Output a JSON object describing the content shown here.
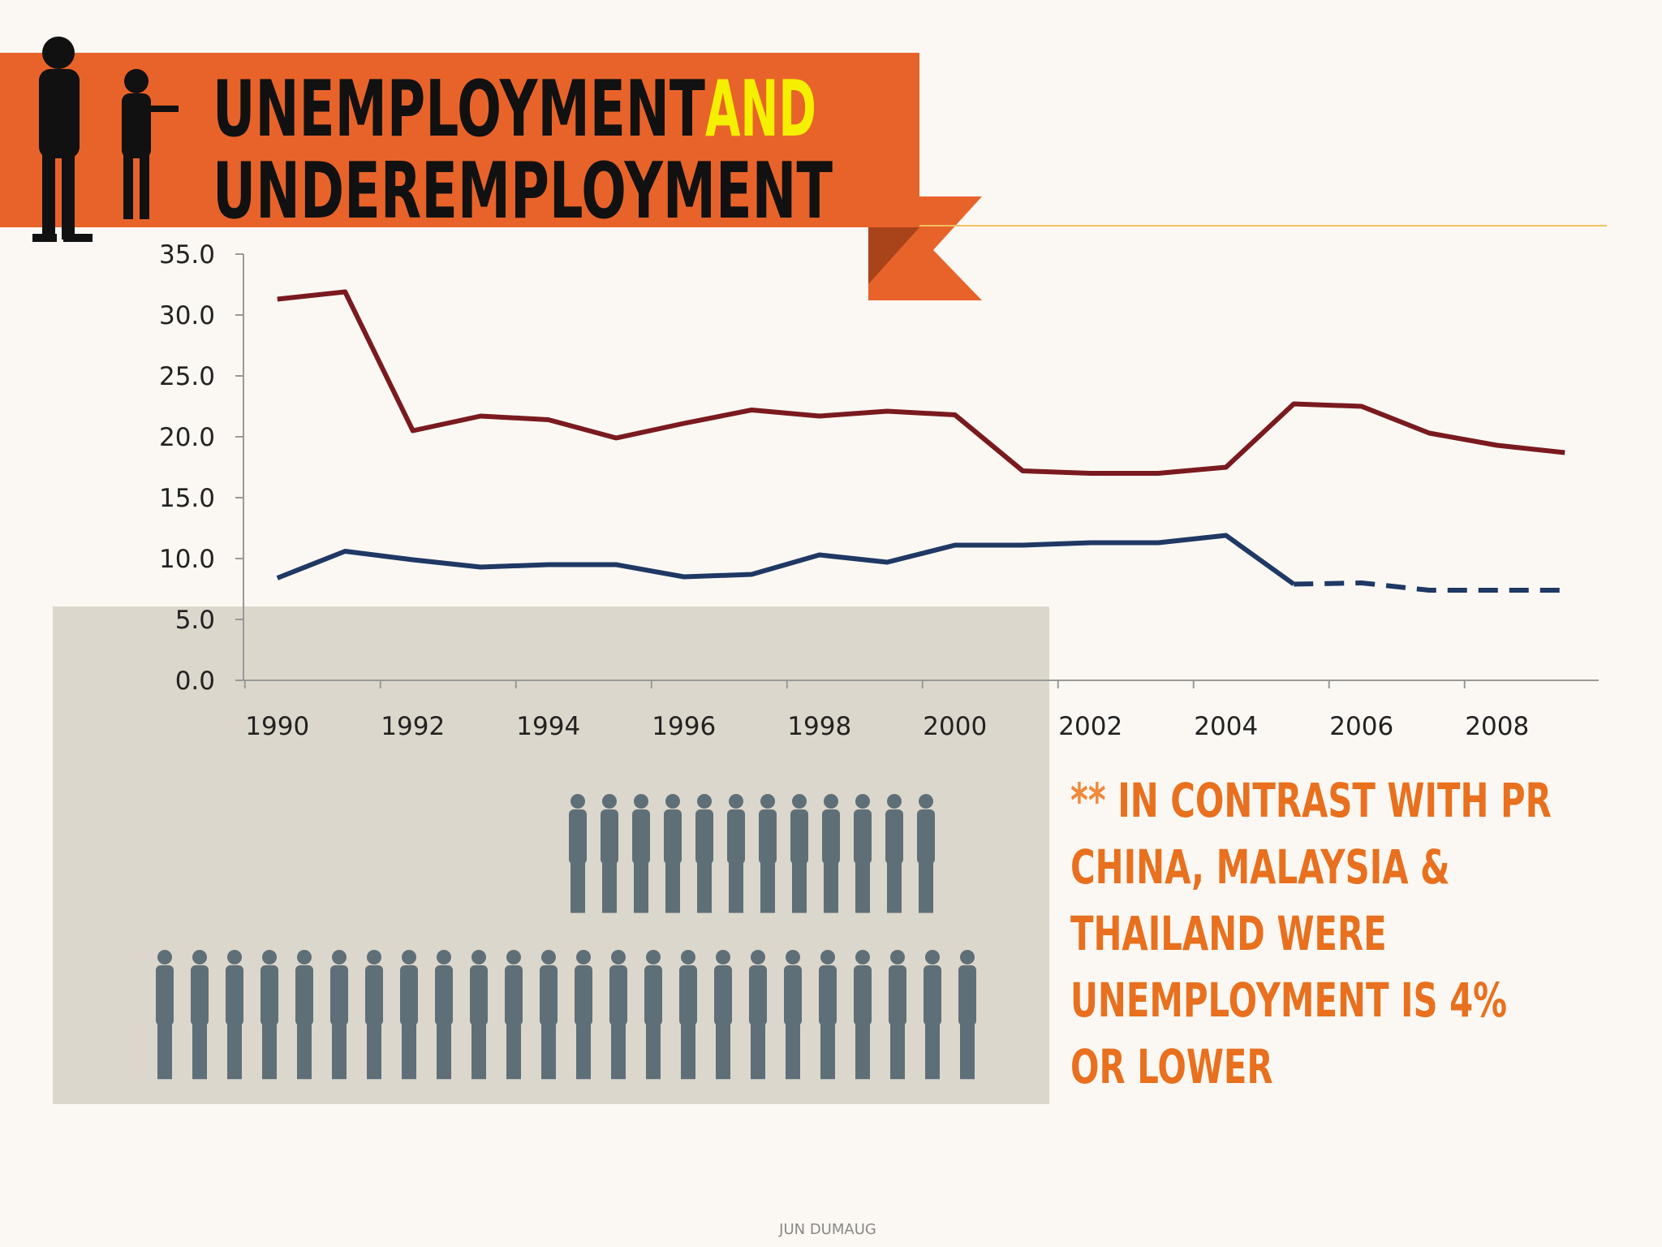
{
  "slide": {
    "title": [
      "UNEMPLOYMENT",
      "AND",
      "UNDEREMPLOYMENT"
    ],
    "note_mark": "**",
    "note": "IN CONTRAST WITH  PR CHINA, MALAYSIA & THAILAND WERE UNEMPLOYMENT IS 4% OR LOWER",
    "footer": "JUN DUMAUG"
  },
  "chart_data": {
    "type": "line",
    "x": [
      1990,
      1991,
      1992,
      1993,
      1994,
      1995,
      1996,
      1997,
      1998,
      1999,
      2000,
      2001,
      2002,
      2003,
      2004,
      2005,
      2006,
      2007,
      2008,
      2009
    ],
    "series": [
      {
        "color": "#7a1a1f",
        "line_style": "solid",
        "values": [
          31.3,
          31.9,
          20.5,
          21.7,
          21.4,
          19.9,
          21.1,
          22.2,
          21.7,
          22.1,
          21.8,
          17.2,
          17.0,
          17.0,
          17.5,
          22.7,
          22.5,
          20.3,
          19.3,
          18.7
        ]
      },
      {
        "color": "#1f3864",
        "line_style": "solid",
        "values": [
          8.4,
          10.6,
          9.9,
          9.3,
          9.5,
          9.5,
          8.5,
          8.7,
          10.3,
          9.7,
          11.1,
          11.1,
          11.3,
          11.3,
          11.9,
          7.9,
          null,
          null,
          null,
          null
        ]
      },
      {
        "color": "#1f3864",
        "line_style": "dashed",
        "values": [
          null,
          null,
          null,
          null,
          null,
          null,
          null,
          null,
          null,
          null,
          null,
          null,
          null,
          null,
          null,
          7.9,
          8.0,
          7.4,
          7.4,
          7.4
        ]
      }
    ],
    "xlim": [
      1989.5,
      2009.5
    ],
    "xticks": [
      1990,
      1992,
      1994,
      1996,
      1998,
      2000,
      2002,
      2004,
      2006,
      2008
    ],
    "ylim": [
      0,
      35
    ],
    "yticks": [
      {
        "value": 0,
        "label": "0.0"
      },
      {
        "value": 5,
        "label": "5.0"
      },
      {
        "value": 10,
        "label": "10.0"
      },
      {
        "value": 15,
        "label": "15.0"
      },
      {
        "value": 20,
        "label": "20.0"
      },
      {
        "value": 25,
        "label": "25.0"
      },
      {
        "value": 30,
        "label": "30.0"
      },
      {
        "value": 35,
        "label": "35.0"
      }
    ]
  }
}
